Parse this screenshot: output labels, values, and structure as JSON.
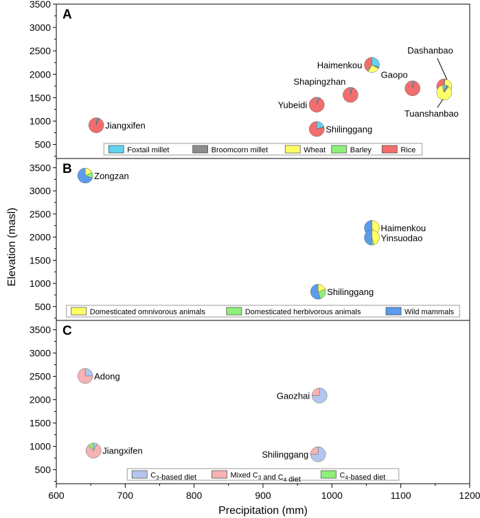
{
  "chart_data": {
    "type": "scatter",
    "variant": "pie-markers",
    "xlabel": "Precipitation (mm)",
    "ylabel": "Elevation (masl)",
    "xlim": [
      600,
      1200
    ],
    "x_ticks": [
      "600",
      "700",
      "800",
      "900",
      "1000",
      "1100",
      "1200"
    ],
    "panels": [
      {
        "label": "A",
        "ylim": [
          200,
          3500
        ],
        "y_ticks": [
          "500",
          "1000",
          "1500",
          "2000",
          "2500",
          "3000",
          "3500"
        ],
        "legend_position": "bottom-center",
        "categories": [
          {
            "name": "Foxtail millet",
            "color": "#5fd3f0"
          },
          {
            "name": "Broomcorn millet",
            "color": "#8c8c8c"
          },
          {
            "name": "Wheat",
            "color": "#ffff66"
          },
          {
            "name": "Barley",
            "color": "#8ef07a"
          },
          {
            "name": "Rice",
            "color": "#f26d6d"
          }
        ],
        "sites": [
          {
            "name": "Jiangxifen",
            "x": 658,
            "y": 910,
            "values": [
              3,
              2,
              0,
              0,
              95
            ],
            "label_side": "right"
          },
          {
            "name": "Shilinggang",
            "x": 978,
            "y": 830,
            "values": [
              20,
              2,
              0,
              0,
              78
            ],
            "label_side": "right"
          },
          {
            "name": "Yubeidi",
            "x": 978,
            "y": 1350,
            "values": [
              4,
              2,
              0,
              0,
              94
            ],
            "label_side": "left"
          },
          {
            "name": "Shapingzhan",
            "x": 1027,
            "y": 1560,
            "values": [
              3,
              2,
              0,
              0,
              95
            ],
            "label_side": "left-above"
          },
          {
            "name": "Haimenkou",
            "x": 1058,
            "y": 2200,
            "values": [
              30,
              3,
              25,
              2,
              40
            ],
            "label_side": "left"
          },
          {
            "name": "Gaopo",
            "x": 1117,
            "y": 1700,
            "values": [
              3,
              2,
              0,
              0,
              95
            ],
            "label_side": "left-above"
          },
          {
            "name": "Dashanbao",
            "x": 1163,
            "y": 1740,
            "values": [
              0,
              2,
              35,
              0,
              63
            ],
            "label_side": "above"
          },
          {
            "name": "Tuanshanbao",
            "x": 1163,
            "y": 1610,
            "values": [
              5,
              5,
              85,
              5,
              0
            ],
            "label_side": "below"
          }
        ]
      },
      {
        "label": "B",
        "ylim": [
          200,
          3700
        ],
        "y_ticks": [
          "500",
          "1000",
          "1500",
          "2000",
          "2500",
          "3000",
          "3500"
        ],
        "legend_position": "bottom-center",
        "categories": [
          {
            "name": "Domesticated omnivorous animals",
            "color": "#ffff66"
          },
          {
            "name": "Domesticated herbivorous animals",
            "color": "#8ef07a"
          },
          {
            "name": "Wild mammals",
            "color": "#5b9bea"
          }
        ],
        "sites": [
          {
            "name": "Zongzan",
            "x": 642,
            "y": 3330,
            "values": [
              18,
              12,
              70
            ],
            "label_side": "right"
          },
          {
            "name": "Haimenkou",
            "x": 1058,
            "y": 2200,
            "values": [
              45,
              0,
              55
            ],
            "label_side": "right"
          },
          {
            "name": "Yinsuodao",
            "x": 1058,
            "y": 1990,
            "values": [
              45,
              5,
              50
            ],
            "label_side": "right"
          },
          {
            "name": "Shilinggang",
            "x": 980,
            "y": 820,
            "values": [
              20,
              25,
              55
            ],
            "label_side": "right"
          }
        ]
      },
      {
        "label": "C",
        "ylim": [
          200,
          3700
        ],
        "y_ticks": [
          "500",
          "1000",
          "1500",
          "2000",
          "2500",
          "3000",
          "3500"
        ],
        "legend_position": "bottom-center",
        "categories": [
          {
            "name": "C3-based diet",
            "color": "#b4c6ee"
          },
          {
            "name": "Mixed C3 and C4 diet",
            "color": "#f5b3b3"
          },
          {
            "name": "C4-based diet",
            "color": "#8ef07a"
          }
        ],
        "sites": [
          {
            "name": "Adong",
            "x": 642,
            "y": 2510,
            "values": [
              25,
              75,
              0
            ],
            "label_side": "right"
          },
          {
            "name": "Gaozhai",
            "x": 982,
            "y": 2090,
            "values": [
              75,
              25,
              0
            ],
            "label_side": "left"
          },
          {
            "name": "Jiangxifen",
            "x": 654,
            "y": 910,
            "values": [
              8,
              80,
              12
            ],
            "label_side": "right"
          },
          {
            "name": "Shilinggang",
            "x": 980,
            "y": 830,
            "values": [
              75,
              25,
              0
            ],
            "label_side": "left"
          }
        ]
      }
    ]
  }
}
